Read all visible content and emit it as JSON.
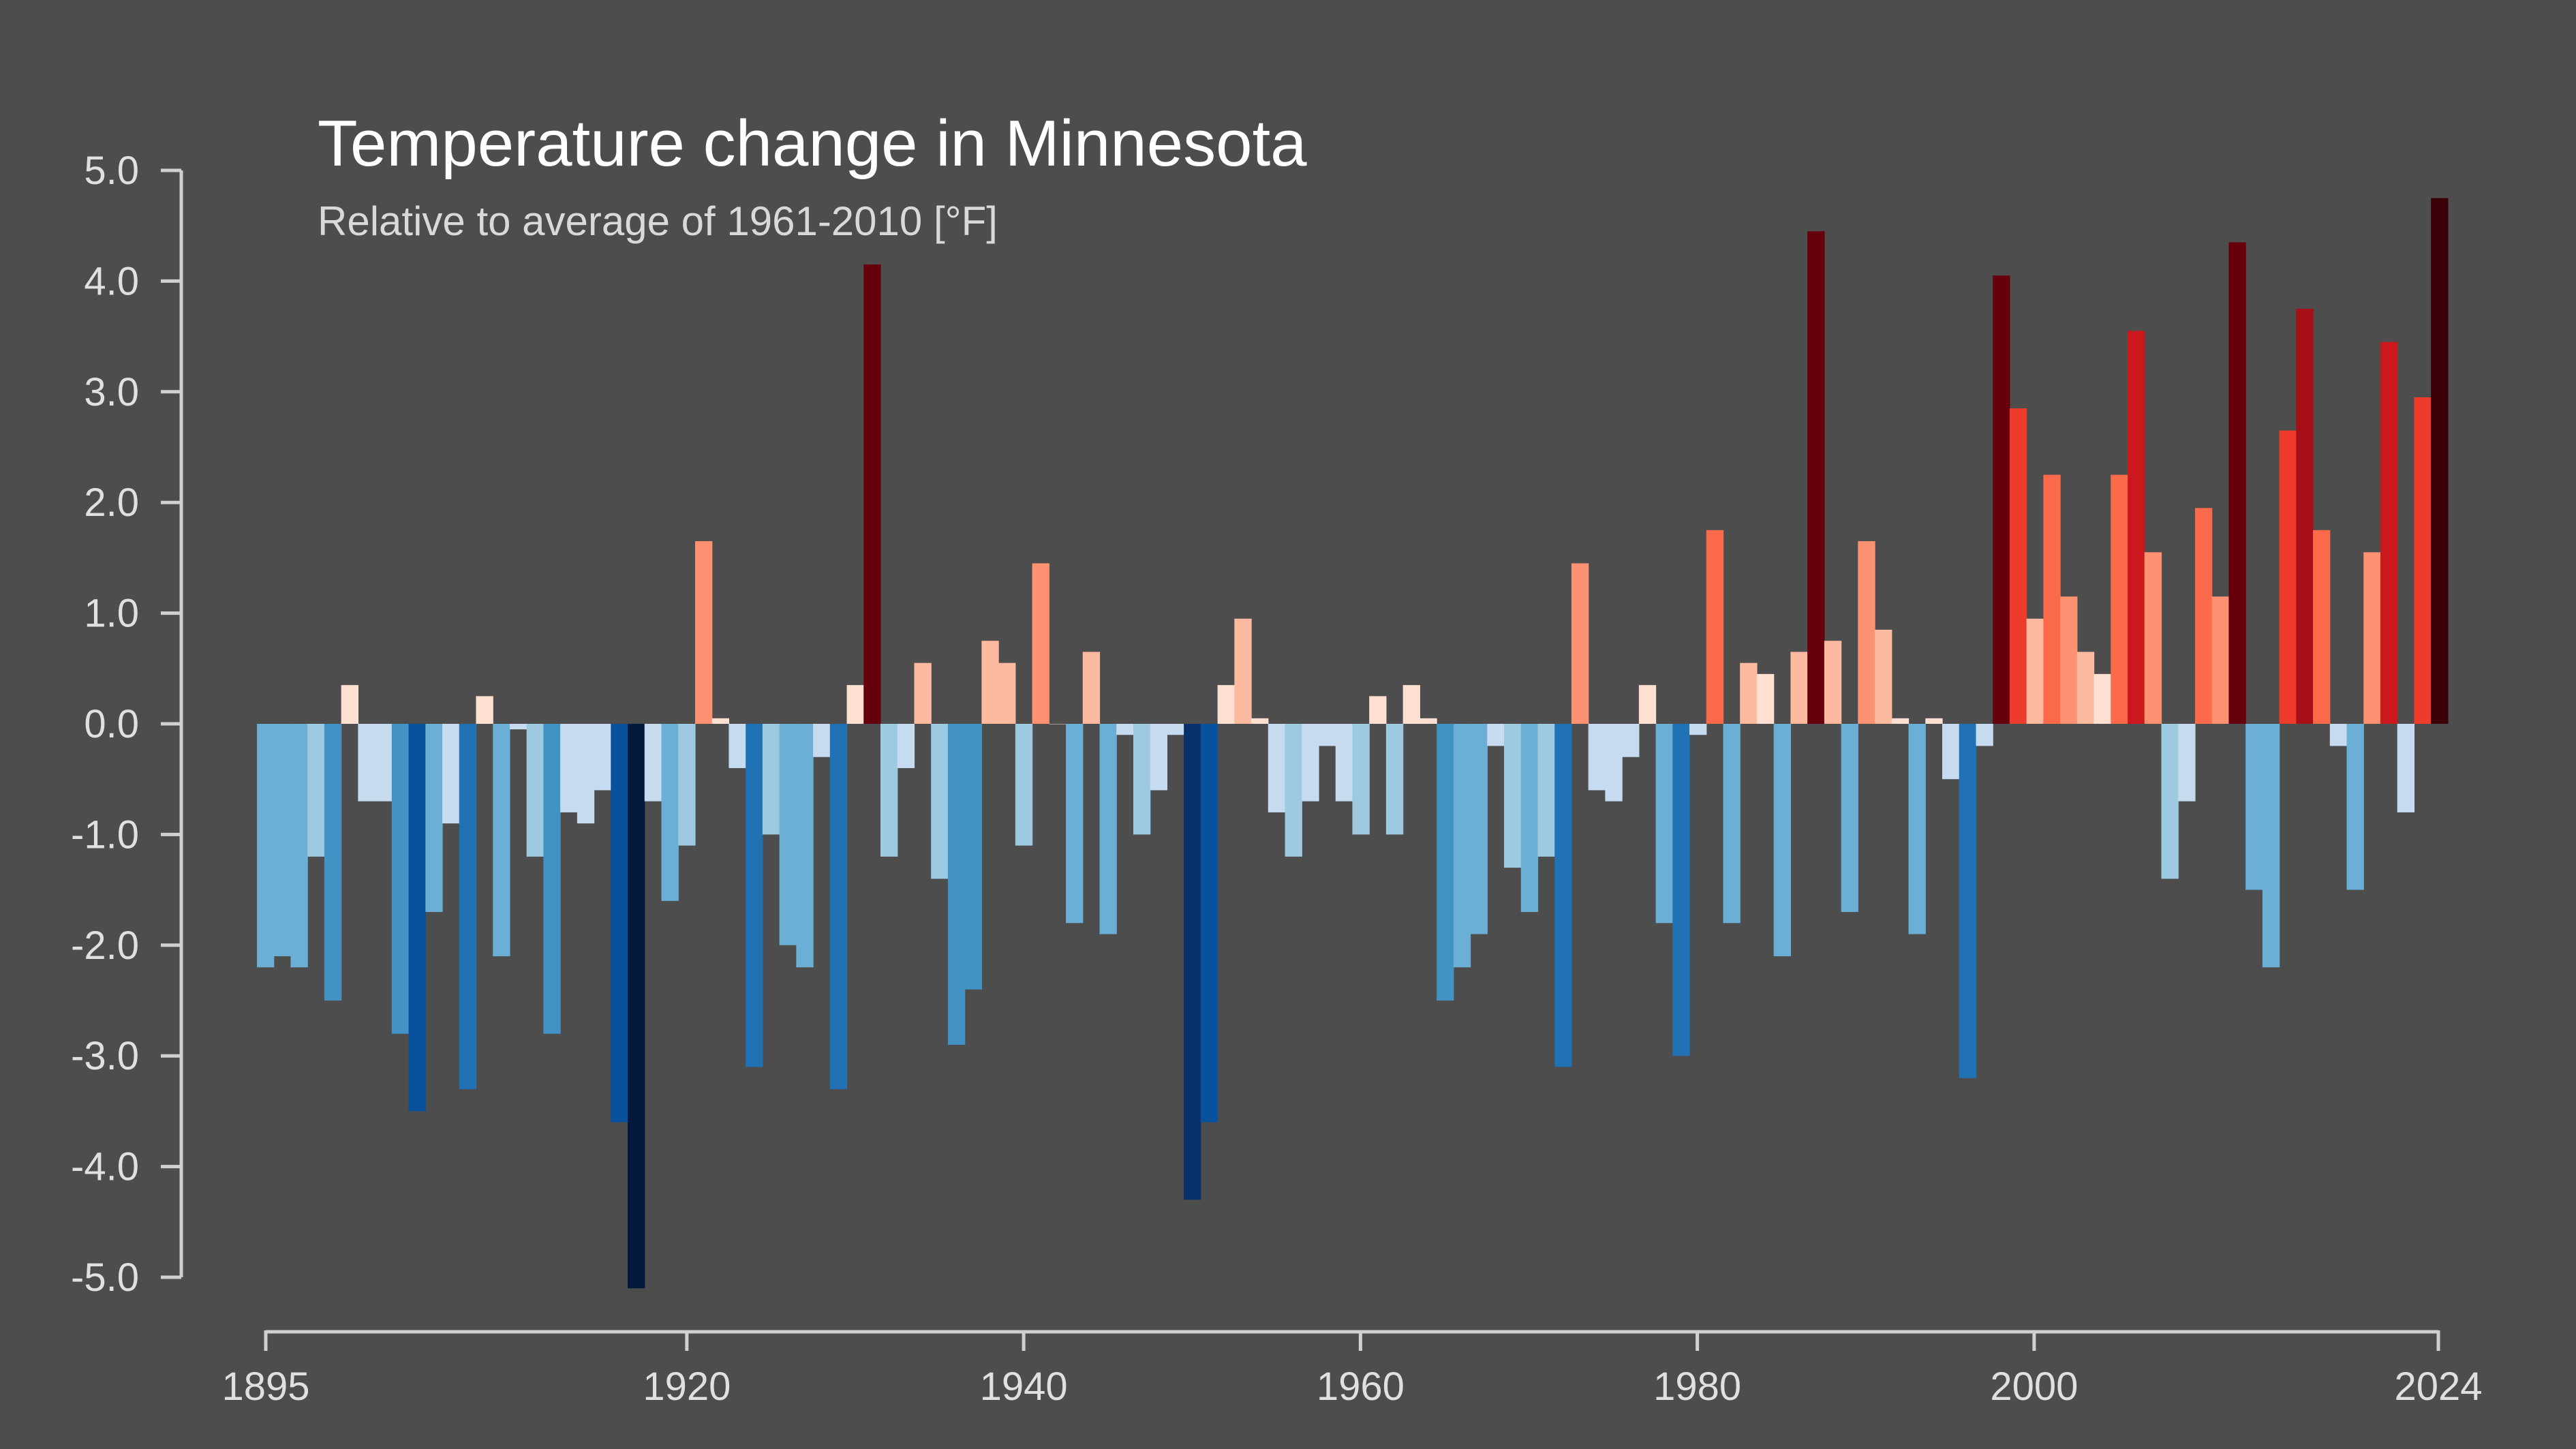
{
  "chart_data": {
    "type": "bar",
    "title": "Temperature change in Minnesota",
    "subtitle": "Relative to average of 1961-2010  [°F]",
    "ylim": [
      -5.0,
      5.0
    ],
    "xlim": [
      1895,
      2024
    ],
    "yticks": [
      "5.0",
      "4.0",
      "3.0",
      "2.0",
      "1.0",
      "0.0",
      "-1.0",
      "-2.0",
      "-3.0",
      "-4.0",
      "-5.0"
    ],
    "ytick_values": [
      5,
      4,
      3,
      2,
      1,
      0,
      -1,
      -2,
      -3,
      -4,
      -5
    ],
    "xticks": [
      "1895",
      "1920",
      "1940",
      "1960",
      "1980",
      "2000",
      "2024"
    ],
    "xtick_values": [
      1895,
      1920,
      1940,
      1960,
      1980,
      2000,
      2024
    ],
    "grid": false,
    "legend": "none",
    "start_year": 1895,
    "values": [
      -2.2,
      -2.1,
      -2.2,
      -1.2,
      -2.5,
      0.35,
      -0.7,
      -0.7,
      -2.8,
      -3.5,
      -1.7,
      -0.9,
      -3.3,
      0.25,
      -2.1,
      -0.05,
      -1.2,
      -2.8,
      -0.8,
      -0.9,
      -0.6,
      -3.6,
      -5.1,
      -0.7,
      -1.6,
      -1.1,
      1.65,
      0.05,
      -0.4,
      -3.1,
      -1.0,
      -2.0,
      -2.2,
      -0.3,
      -3.3,
      0.35,
      4.15,
      -1.2,
      -0.4,
      0.55,
      -1.4,
      -2.9,
      -2.4,
      0.75,
      0.55,
      -1.1,
      1.45,
      0.0,
      -1.8,
      0.65,
      -1.9,
      -0.1,
      -1.0,
      -0.6,
      -0.1,
      -4.3,
      -3.6,
      0.35,
      0.95,
      0.05,
      -0.8,
      -1.2,
      -0.7,
      -0.2,
      -0.7,
      -1.0,
      0.25,
      -1.0,
      0.35,
      0.05,
      -2.5,
      -2.2,
      -1.9,
      -0.2,
      -1.3,
      -1.7,
      -1.2,
      -3.1,
      1.45,
      -0.6,
      -0.7,
      -0.3,
      0.35,
      -1.8,
      -3.0,
      -0.1,
      1.75,
      -1.8,
      0.55,
      0.45,
      -2.1,
      0.65,
      4.45,
      0.75,
      -1.7,
      1.65,
      0.85,
      0.05,
      -1.9,
      0.05,
      -0.5,
      -3.2,
      -0.2,
      4.05,
      2.85,
      0.95,
      2.25,
      1.15,
      0.65,
      0.45,
      2.25,
      3.55,
      1.55,
      -1.4,
      -0.7,
      1.95,
      1.15,
      4.35,
      -1.5,
      -2.2,
      2.65,
      3.75,
      1.75,
      -0.2,
      -1.5,
      1.55,
      3.45,
      -0.8,
      2.95,
      4.75
    ],
    "color_scale": {
      "neg": [
        "#08306b",
        "#08519c",
        "#2171b5",
        "#4292c6",
        "#6baed6",
        "#9ecae1",
        "#c6dbef"
      ],
      "pos": [
        "#fee0d2",
        "#fcbba1",
        "#fc9272",
        "#fb6a4a",
        "#ef3b2c",
        "#cb181d",
        "#a50f15",
        "#67000d",
        "#3a0008"
      ]
    },
    "axis_color": "#d0d0d0"
  }
}
